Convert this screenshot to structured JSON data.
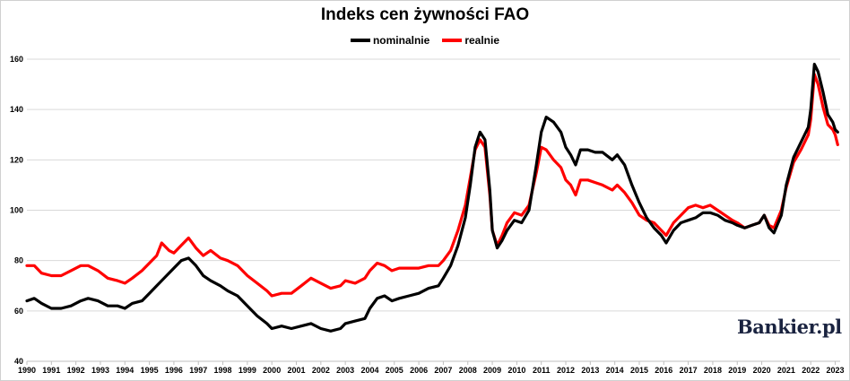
{
  "chart_data": {
    "type": "line",
    "title": "Indeks cen żywności FAO",
    "xlabel": "",
    "ylabel": "",
    "xlim": [
      1990,
      2023.2
    ],
    "ylim": [
      40,
      160
    ],
    "xticks": [
      "1990",
      "1991",
      "1992",
      "1993",
      "1994",
      "1995",
      "1996",
      "1997",
      "1998",
      "1999",
      "2000",
      "2001",
      "2002",
      "2003",
      "2004",
      "2005",
      "2006",
      "2007",
      "2008",
      "2009",
      "2010",
      "2011",
      "2012",
      "2013",
      "2014",
      "2015",
      "2016",
      "2017",
      "2018",
      "2019",
      "2020",
      "2021",
      "2022",
      "2023"
    ],
    "yticks": [
      "40",
      "60",
      "80",
      "100",
      "120",
      "140",
      "160"
    ],
    "grid": "horizontal",
    "legend_position": "top-center",
    "series": [
      {
        "name": "nominalnie",
        "color": "#000000",
        "points": [
          [
            1990.0,
            64
          ],
          [
            1990.3,
            65
          ],
          [
            1990.6,
            63
          ],
          [
            1991.0,
            61
          ],
          [
            1991.4,
            61
          ],
          [
            1991.8,
            62
          ],
          [
            1992.2,
            64
          ],
          [
            1992.5,
            65
          ],
          [
            1992.9,
            64
          ],
          [
            1993.3,
            62
          ],
          [
            1993.7,
            62
          ],
          [
            1994.0,
            61
          ],
          [
            1994.3,
            63
          ],
          [
            1994.7,
            64
          ],
          [
            1995.0,
            67
          ],
          [
            1995.3,
            70
          ],
          [
            1995.6,
            73
          ],
          [
            1996.0,
            77
          ],
          [
            1996.3,
            80
          ],
          [
            1996.6,
            81
          ],
          [
            1996.9,
            78
          ],
          [
            1997.2,
            74
          ],
          [
            1997.5,
            72
          ],
          [
            1997.9,
            70
          ],
          [
            1998.2,
            68
          ],
          [
            1998.6,
            66
          ],
          [
            1999.0,
            62
          ],
          [
            1999.4,
            58
          ],
          [
            1999.8,
            55
          ],
          [
            2000.0,
            53
          ],
          [
            2000.4,
            54
          ],
          [
            2000.8,
            53
          ],
          [
            2001.2,
            54
          ],
          [
            2001.6,
            55
          ],
          [
            2002.0,
            53
          ],
          [
            2002.4,
            52
          ],
          [
            2002.8,
            53
          ],
          [
            2003.0,
            55
          ],
          [
            2003.4,
            56
          ],
          [
            2003.8,
            57
          ],
          [
            2004.0,
            61
          ],
          [
            2004.3,
            65
          ],
          [
            2004.6,
            66
          ],
          [
            2004.9,
            64
          ],
          [
            2005.2,
            65
          ],
          [
            2005.6,
            66
          ],
          [
            2006.0,
            67
          ],
          [
            2006.4,
            69
          ],
          [
            2006.8,
            70
          ],
          [
            2007.0,
            73
          ],
          [
            2007.3,
            78
          ],
          [
            2007.6,
            86
          ],
          [
            2007.9,
            97
          ],
          [
            2008.1,
            110
          ],
          [
            2008.3,
            125
          ],
          [
            2008.5,
            131
          ],
          [
            2008.7,
            128
          ],
          [
            2008.9,
            108
          ],
          [
            2009.0,
            92
          ],
          [
            2009.2,
            85
          ],
          [
            2009.4,
            88
          ],
          [
            2009.6,
            92
          ],
          [
            2009.9,
            96
          ],
          [
            2010.2,
            95
          ],
          [
            2010.5,
            100
          ],
          [
            2010.8,
            118
          ],
          [
            2011.0,
            131
          ],
          [
            2011.2,
            137
          ],
          [
            2011.5,
            135
          ],
          [
            2011.8,
            131
          ],
          [
            2012.0,
            125
          ],
          [
            2012.2,
            122
          ],
          [
            2012.4,
            118
          ],
          [
            2012.6,
            124
          ],
          [
            2012.9,
            124
          ],
          [
            2013.2,
            123
          ],
          [
            2013.5,
            123
          ],
          [
            2013.9,
            120
          ],
          [
            2014.1,
            122
          ],
          [
            2014.4,
            118
          ],
          [
            2014.7,
            110
          ],
          [
            2015.0,
            103
          ],
          [
            2015.3,
            97
          ],
          [
            2015.6,
            93
          ],
          [
            2015.9,
            90
          ],
          [
            2016.1,
            87
          ],
          [
            2016.4,
            92
          ],
          [
            2016.7,
            95
          ],
          [
            2017.0,
            96
          ],
          [
            2017.3,
            97
          ],
          [
            2017.6,
            99
          ],
          [
            2017.9,
            99
          ],
          [
            2018.2,
            98
          ],
          [
            2018.5,
            96
          ],
          [
            2018.8,
            95
          ],
          [
            2019.0,
            94
          ],
          [
            2019.3,
            93
          ],
          [
            2019.6,
            94
          ],
          [
            2019.9,
            95
          ],
          [
            2020.1,
            98
          ],
          [
            2020.3,
            93
          ],
          [
            2020.5,
            91
          ],
          [
            2020.8,
            98
          ],
          [
            2021.0,
            110
          ],
          [
            2021.3,
            121
          ],
          [
            2021.6,
            127
          ],
          [
            2021.9,
            133
          ],
          [
            2022.0,
            140
          ],
          [
            2022.15,
            158
          ],
          [
            2022.3,
            155
          ],
          [
            2022.5,
            147
          ],
          [
            2022.7,
            138
          ],
          [
            2022.9,
            135
          ],
          [
            2023.0,
            132
          ],
          [
            2023.1,
            131
          ]
        ]
      },
      {
        "name": "realnie",
        "color": "#ff0000",
        "points": [
          [
            1990.0,
            78
          ],
          [
            1990.3,
            78
          ],
          [
            1990.6,
            75
          ],
          [
            1991.0,
            74
          ],
          [
            1991.4,
            74
          ],
          [
            1991.8,
            76
          ],
          [
            1992.2,
            78
          ],
          [
            1992.5,
            78
          ],
          [
            1992.9,
            76
          ],
          [
            1993.3,
            73
          ],
          [
            1993.7,
            72
          ],
          [
            1994.0,
            71
          ],
          [
            1994.3,
            73
          ],
          [
            1994.7,
            76
          ],
          [
            1995.0,
            79
          ],
          [
            1995.3,
            82
          ],
          [
            1995.5,
            87
          ],
          [
            1995.8,
            84
          ],
          [
            1996.0,
            83
          ],
          [
            1996.3,
            86
          ],
          [
            1996.6,
            89
          ],
          [
            1996.9,
            85
          ],
          [
            1997.2,
            82
          ],
          [
            1997.5,
            84
          ],
          [
            1997.9,
            81
          ],
          [
            1998.2,
            80
          ],
          [
            1998.6,
            78
          ],
          [
            1999.0,
            74
          ],
          [
            1999.4,
            71
          ],
          [
            1999.8,
            68
          ],
          [
            2000.0,
            66
          ],
          [
            2000.4,
            67
          ],
          [
            2000.8,
            67
          ],
          [
            2001.2,
            70
          ],
          [
            2001.6,
            73
          ],
          [
            2002.0,
            71
          ],
          [
            2002.4,
            69
          ],
          [
            2002.8,
            70
          ],
          [
            2003.0,
            72
          ],
          [
            2003.4,
            71
          ],
          [
            2003.8,
            73
          ],
          [
            2004.0,
            76
          ],
          [
            2004.3,
            79
          ],
          [
            2004.6,
            78
          ],
          [
            2004.9,
            76
          ],
          [
            2005.2,
            77
          ],
          [
            2005.6,
            77
          ],
          [
            2006.0,
            77
          ],
          [
            2006.4,
            78
          ],
          [
            2006.8,
            78
          ],
          [
            2007.0,
            80
          ],
          [
            2007.3,
            84
          ],
          [
            2007.6,
            92
          ],
          [
            2007.9,
            102
          ],
          [
            2008.1,
            113
          ],
          [
            2008.3,
            124
          ],
          [
            2008.5,
            128
          ],
          [
            2008.7,
            125
          ],
          [
            2008.9,
            106
          ],
          [
            2009.0,
            92
          ],
          [
            2009.2,
            86
          ],
          [
            2009.4,
            90
          ],
          [
            2009.6,
            95
          ],
          [
            2009.9,
            99
          ],
          [
            2010.2,
            98
          ],
          [
            2010.5,
            102
          ],
          [
            2010.8,
            115
          ],
          [
            2011.0,
            125
          ],
          [
            2011.2,
            124
          ],
          [
            2011.5,
            120
          ],
          [
            2011.8,
            117
          ],
          [
            2012.0,
            112
          ],
          [
            2012.2,
            110
          ],
          [
            2012.4,
            106
          ],
          [
            2012.6,
            112
          ],
          [
            2012.9,
            112
          ],
          [
            2013.2,
            111
          ],
          [
            2013.5,
            110
          ],
          [
            2013.9,
            108
          ],
          [
            2014.1,
            110
          ],
          [
            2014.4,
            107
          ],
          [
            2014.7,
            103
          ],
          [
            2015.0,
            98
          ],
          [
            2015.3,
            96
          ],
          [
            2015.6,
            95
          ],
          [
            2015.9,
            92
          ],
          [
            2016.1,
            90
          ],
          [
            2016.4,
            95
          ],
          [
            2016.7,
            98
          ],
          [
            2017.0,
            101
          ],
          [
            2017.3,
            102
          ],
          [
            2017.6,
            101
          ],
          [
            2017.9,
            102
          ],
          [
            2018.2,
            100
          ],
          [
            2018.5,
            98
          ],
          [
            2018.8,
            96
          ],
          [
            2019.0,
            95
          ],
          [
            2019.3,
            93
          ],
          [
            2019.6,
            94
          ],
          [
            2019.9,
            95
          ],
          [
            2020.1,
            98
          ],
          [
            2020.3,
            94
          ],
          [
            2020.5,
            93
          ],
          [
            2020.8,
            100
          ],
          [
            2021.0,
            109
          ],
          [
            2021.3,
            119
          ],
          [
            2021.6,
            124
          ],
          [
            2021.9,
            130
          ],
          [
            2022.0,
            136
          ],
          [
            2022.15,
            154
          ],
          [
            2022.3,
            150
          ],
          [
            2022.5,
            141
          ],
          [
            2022.7,
            134
          ],
          [
            2022.9,
            132
          ],
          [
            2023.0,
            130
          ],
          [
            2023.1,
            126
          ]
        ]
      }
    ]
  },
  "watermark": "Bankier.pl"
}
